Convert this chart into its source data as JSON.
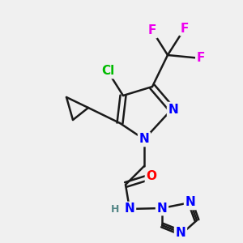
{
  "bg_color": "#f0f0f0",
  "bond_color": "#1a1a1a",
  "bond_width": 1.8,
  "atom_colors": {
    "N": "#0000ff",
    "O": "#ff0000",
    "Cl": "#00bb00",
    "F": "#ee00ee",
    "H": "#558888",
    "C": "#1a1a1a"
  },
  "fs_large": 11,
  "fs_small": 9
}
